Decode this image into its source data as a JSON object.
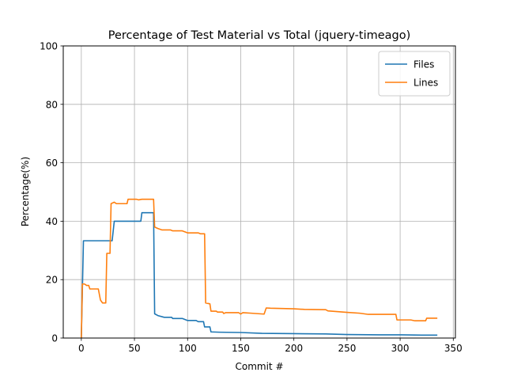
{
  "chart_data": {
    "type": "line",
    "title": "Percentage of Test Material vs Total (jquery-timeago)",
    "xlabel": "Commit #",
    "ylabel": "Percentage(%)",
    "xlim": [
      -17,
      352
    ],
    "ylim": [
      0,
      100
    ],
    "xticks": [
      0,
      50,
      100,
      150,
      200,
      250,
      300,
      350
    ],
    "yticks": [
      0,
      20,
      40,
      60,
      80,
      100
    ],
    "grid": true,
    "legend_position": "top-right",
    "series": [
      {
        "name": "Files",
        "color": "#1f77b4",
        "points": [
          [
            0,
            0
          ],
          [
            2,
            33.3
          ],
          [
            29,
            33.3
          ],
          [
            31,
            40
          ],
          [
            56,
            40
          ],
          [
            57,
            42.9
          ],
          [
            68,
            42.9
          ],
          [
            69,
            8.3
          ],
          [
            72,
            7.7
          ],
          [
            78,
            7.1
          ],
          [
            85,
            7.1
          ],
          [
            86,
            6.7
          ],
          [
            95,
            6.7
          ],
          [
            100,
            6
          ],
          [
            108,
            6
          ],
          [
            110,
            5.6
          ],
          [
            115,
            5.6
          ],
          [
            116,
            3.8
          ],
          [
            121,
            3.8
          ],
          [
            122,
            2.1
          ],
          [
            130,
            2
          ],
          [
            150,
            1.9
          ],
          [
            170,
            1.6
          ],
          [
            200,
            1.5
          ],
          [
            230,
            1.4
          ],
          [
            250,
            1.2
          ],
          [
            280,
            1.1
          ],
          [
            300,
            1.1
          ],
          [
            320,
            1.0
          ],
          [
            335,
            1.0
          ]
        ]
      },
      {
        "name": "Lines",
        "color": "#ff7f0e",
        "points": [
          [
            0,
            0
          ],
          [
            1,
            18.5
          ],
          [
            3,
            18.5
          ],
          [
            5,
            18
          ],
          [
            7,
            18
          ],
          [
            8,
            16.8
          ],
          [
            16,
            16.8
          ],
          [
            18,
            13
          ],
          [
            20,
            12
          ],
          [
            23,
            12
          ],
          [
            24,
            29
          ],
          [
            27,
            29
          ],
          [
            28,
            46
          ],
          [
            31,
            46.5
          ],
          [
            33,
            46
          ],
          [
            43,
            46
          ],
          [
            44,
            47.5
          ],
          [
            52,
            47.5
          ],
          [
            54,
            47.3
          ],
          [
            57,
            47.5
          ],
          [
            68,
            47.5
          ],
          [
            69,
            38
          ],
          [
            72,
            37.5
          ],
          [
            76,
            37
          ],
          [
            84,
            37
          ],
          [
            86,
            36.7
          ],
          [
            95,
            36.7
          ],
          [
            100,
            36
          ],
          [
            110,
            36
          ],
          [
            112,
            35.7
          ],
          [
            116,
            35.7
          ],
          [
            117,
            12
          ],
          [
            121,
            11.7
          ],
          [
            122,
            9.2
          ],
          [
            127,
            9.2
          ],
          [
            128,
            8.9
          ],
          [
            133,
            8.9
          ],
          [
            134,
            8.4
          ],
          [
            136,
            8.7
          ],
          [
            148,
            8.7
          ],
          [
            150,
            8.2
          ],
          [
            152,
            8.7
          ],
          [
            160,
            8.5
          ],
          [
            172,
            8.2
          ],
          [
            174,
            10.3
          ],
          [
            178,
            10.2
          ],
          [
            200,
            10
          ],
          [
            210,
            9.8
          ],
          [
            230,
            9.7
          ],
          [
            232,
            9.3
          ],
          [
            250,
            8.8
          ],
          [
            262,
            8.5
          ],
          [
            270,
            8.1
          ],
          [
            296,
            8.1
          ],
          [
            297,
            6.2
          ],
          [
            310,
            6.2
          ],
          [
            314,
            5.9
          ],
          [
            324,
            5.9
          ],
          [
            325,
            6.8
          ],
          [
            335,
            6.8
          ]
        ]
      }
    ]
  }
}
